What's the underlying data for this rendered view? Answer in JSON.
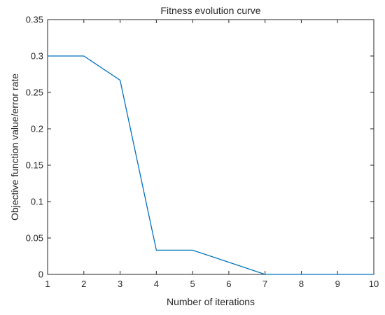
{
  "chart_data": {
    "type": "line",
    "title": "Fitness evolution curve",
    "xlabel": "Number of iterations",
    "ylabel": "Objective function value/error rate",
    "xlim": [
      1,
      10
    ],
    "ylim": [
      0,
      0.35
    ],
    "xticks": [
      "1",
      "2",
      "3",
      "4",
      "5",
      "6",
      "7",
      "8",
      "9",
      "10"
    ],
    "yticks": [
      "0",
      "0.05",
      "0.1",
      "0.15",
      "0.2",
      "0.25",
      "0.3",
      "0.35"
    ],
    "grid": false,
    "series": [
      {
        "color": "#0072bd",
        "x": [
          1,
          2,
          3,
          4,
          5,
          6,
          7,
          8,
          9,
          10
        ],
        "y": [
          0.3,
          0.3,
          0.2667,
          0.0333,
          0.0333,
          0.0167,
          0,
          0,
          0,
          0
        ]
      }
    ]
  }
}
